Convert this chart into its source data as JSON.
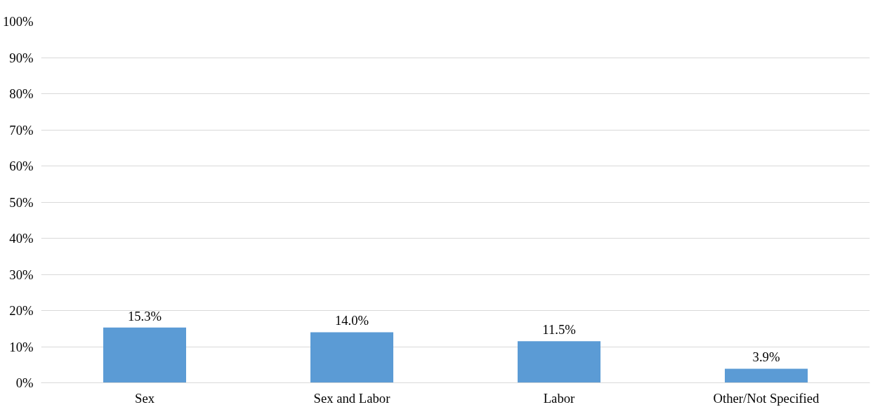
{
  "chart_data": {
    "type": "bar",
    "categories": [
      "Sex",
      "Sex and Labor",
      "Labor",
      "Other/Not Specified"
    ],
    "values": [
      15.3,
      14.0,
      11.5,
      3.9
    ],
    "value_labels": [
      "15.3%",
      "14.0%",
      "11.5%",
      "3.9%"
    ],
    "color": "#5b9bd5",
    "ylim": [
      0,
      100
    ],
    "yticks": [
      {
        "value": 0,
        "label": "0%"
      },
      {
        "value": 10,
        "label": "10%"
      },
      {
        "value": 20,
        "label": "20%"
      },
      {
        "value": 30,
        "label": "30%"
      },
      {
        "value": 40,
        "label": "40%"
      },
      {
        "value": 50,
        "label": "50%"
      },
      {
        "value": 60,
        "label": "60%"
      },
      {
        "value": 70,
        "label": "70%"
      },
      {
        "value": 80,
        "label": "80%"
      },
      {
        "value": 90,
        "label": "90%"
      },
      {
        "value": 100,
        "label": "100%"
      }
    ],
    "grid": "y"
  }
}
